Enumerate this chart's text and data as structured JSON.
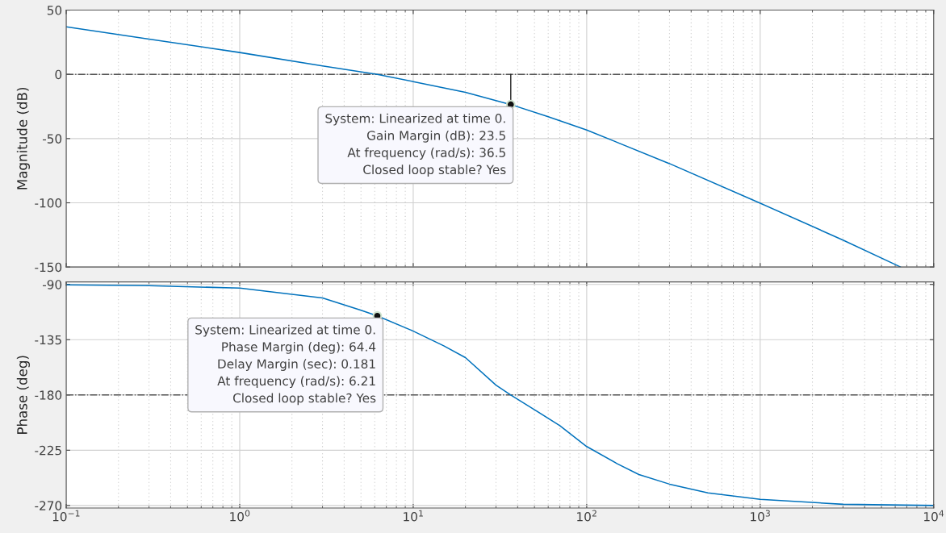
{
  "chart_data": [
    {
      "type": "line",
      "ylabel": "Magnitude (dB)",
      "log": "x",
      "grid": true,
      "tick_labels": "y",
      "xlim": [
        0.1,
        10000
      ],
      "ylim": [
        -150,
        50
      ],
      "xticks": [
        {
          "value": 0.1,
          "label": null
        },
        {
          "value": 1,
          "label": null
        },
        {
          "value": 10,
          "label": null
        },
        {
          "value": 100,
          "label": null
        },
        {
          "value": 1000,
          "label": null
        },
        {
          "value": 10000,
          "label": null
        }
      ],
      "yticks": [
        -150,
        -100,
        -50,
        0,
        50
      ],
      "series": [
        {
          "color": "#0072bd",
          "x": [
            0.1,
            0.3,
            1,
            3,
            6.21,
            10,
            15,
            20,
            36.5,
            60,
            100,
            300,
            1000,
            3000,
            6440
          ],
          "values": [
            37,
            27.5,
            17,
            6.5,
            0,
            -5.6,
            -10.5,
            -14,
            -23.5,
            -33,
            -43.3,
            -69.5,
            -100.3,
            -129,
            -150
          ]
        }
      ],
      "ref_lines": [
        {
          "axis": "y",
          "value": 0,
          "color": "#555555",
          "line_style": "dashdot"
        }
      ],
      "annotations": [
        {
          "text": "System: Linearized at time 0.\nGain Margin (dB): 23.5\nAt frequency (rad/s): 36.5\nClosed loop stable? Yes",
          "x": 36.5,
          "y": -23.5
        }
      ]
    },
    {
      "type": "line",
      "ylabel": "Phase (deg)",
      "log": "x",
      "grid": true,
      "xlim": [
        0.1,
        10000
      ],
      "ylim": [
        -272,
        -88
      ],
      "xticks": [
        {
          "value": 0.1,
          "label": "10$^{−1}$"
        },
        {
          "value": 1,
          "label": "10$^{0}$"
        },
        {
          "value": 10,
          "label": "10$^{1}$"
        },
        {
          "value": 100,
          "label": "10$^{2}$"
        },
        {
          "value": 1000,
          "label": "10$^{3}$"
        },
        {
          "value": 10000,
          "label": "10$^{4}$"
        }
      ],
      "yticks": [
        -270,
        -225,
        -180,
        -135,
        -90
      ],
      "series": [
        {
          "color": "#0072bd",
          "x": [
            0.1,
            0.3,
            1,
            2,
            3,
            5,
            6.21,
            10,
            15,
            20,
            30,
            36.5,
            50,
            70,
            100,
            150,
            200,
            300,
            500,
            1000,
            3000,
            10000
          ],
          "values": [
            -90.4,
            -91,
            -93,
            -98,
            -101,
            -111,
            -115.6,
            -128,
            -140,
            -149.6,
            -172,
            -180,
            -192,
            -205,
            -222,
            -236,
            -244.8,
            -252.6,
            -259.7,
            -265,
            -269,
            -270
          ]
        }
      ],
      "ref_lines": [
        {
          "axis": "y",
          "value": -180,
          "color": "#555555",
          "line_style": "dashdot"
        }
      ],
      "annotations": [
        {
          "text": "System: Linearized at time 0.\nPhase Margin (deg): 64.4\nDelay Margin (sec): 0.181\nAt frequency (rad/s): 6.21\nClosed loop stable? Yes",
          "x": 6.21,
          "y": -115.6
        }
      ]
    }
  ]
}
